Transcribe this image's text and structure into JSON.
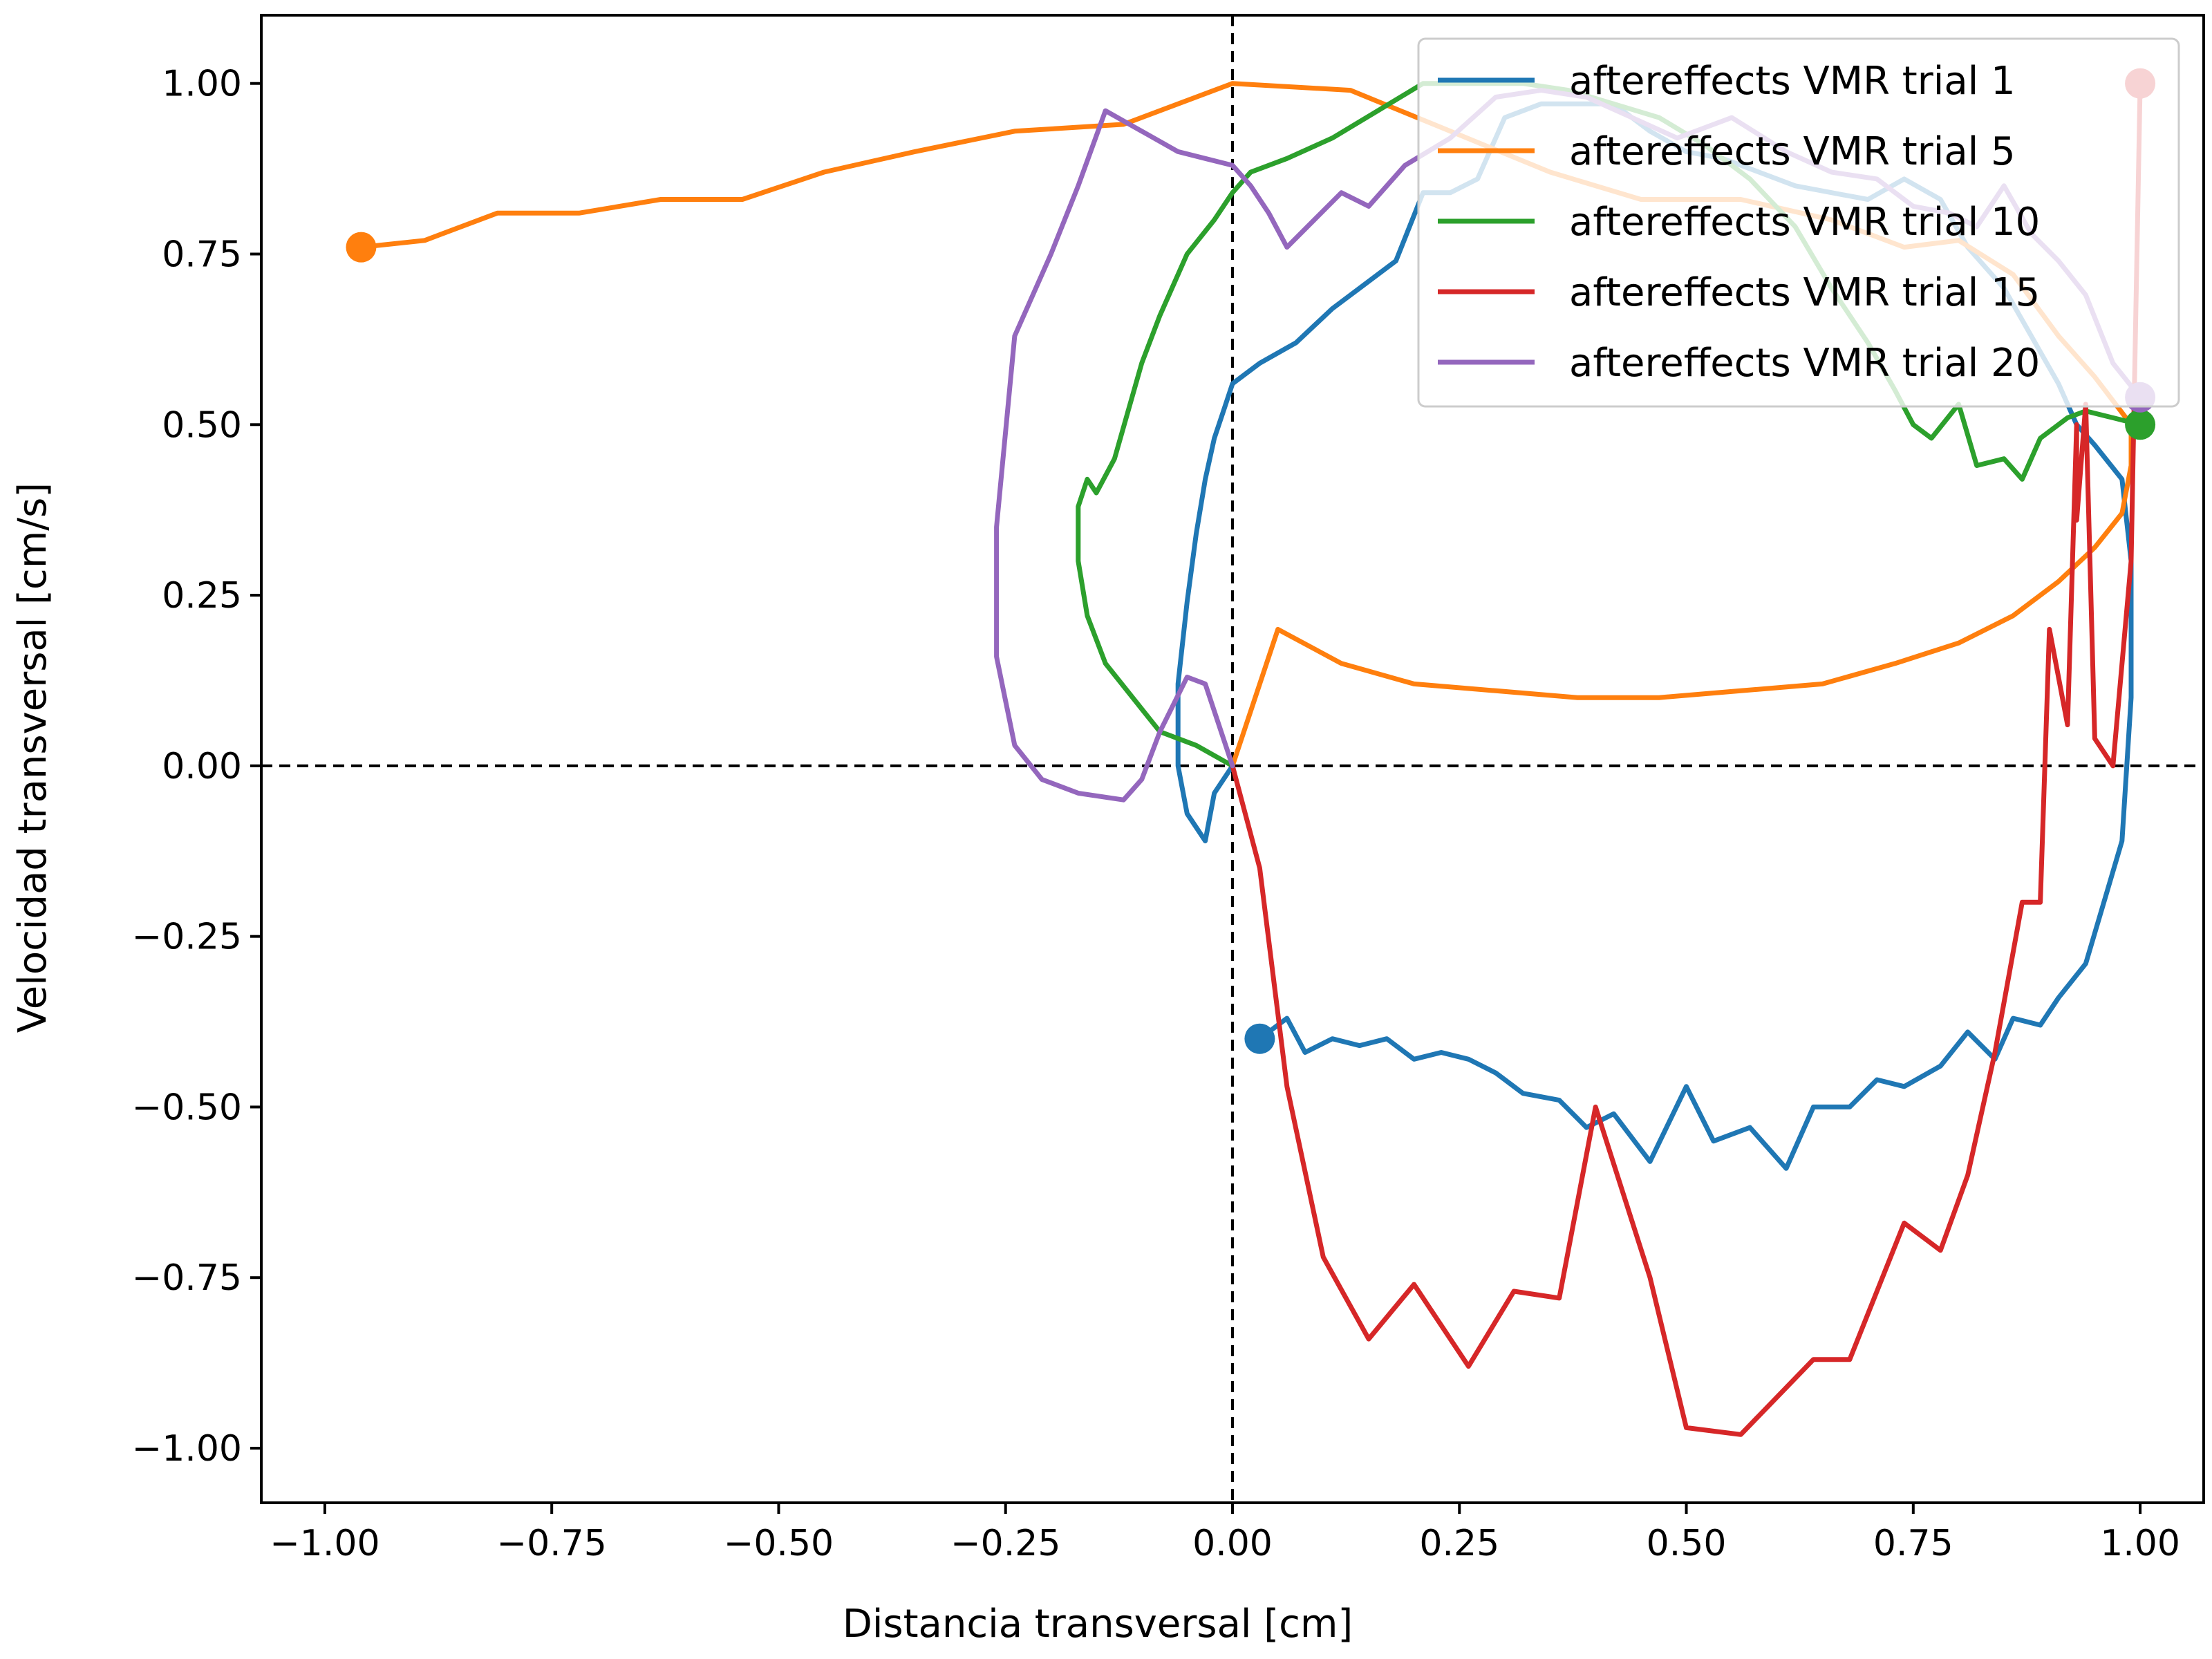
{
  "chart_data": {
    "type": "line",
    "title": "",
    "xlabel": "Distancia transversal [cm]",
    "ylabel": "Velocidad transversal [cm/s]",
    "xlim": [
      -1.07,
      1.07
    ],
    "ylim": [
      -1.08,
      1.1
    ],
    "xticks": [
      -1.0,
      -0.75,
      -0.5,
      -0.25,
      0.0,
      0.25,
      0.5,
      0.75,
      1.0
    ],
    "xtick_labels": [
      "−1.00",
      "−0.75",
      "−0.50",
      "−0.25",
      "0.00",
      "0.25",
      "0.50",
      "0.75",
      "1.00"
    ],
    "yticks": [
      1.0,
      0.75,
      0.5,
      0.25,
      0.0,
      -0.25,
      -0.5,
      -0.75,
      -1.0
    ],
    "ytick_labels": [
      "1.00",
      "0.75",
      "0.50",
      "0.25",
      "0.00",
      "−0.25",
      "−0.50",
      "−0.75",
      "−1.00"
    ],
    "reference_lines": {
      "x": 0,
      "y": 0,
      "style": "dashed"
    },
    "grid": false,
    "legend_position": "top-right",
    "series": [
      {
        "name": "aftereffects VMR trial 1",
        "color": "#1f77b4",
        "start_marker": [
          0.03,
          -0.4
        ],
        "points": [
          [
            0.03,
            -0.4
          ],
          [
            0.06,
            -0.37
          ],
          [
            0.08,
            -0.42
          ],
          [
            0.11,
            -0.4
          ],
          [
            0.14,
            -0.41
          ],
          [
            0.17,
            -0.4
          ],
          [
            0.2,
            -0.43
          ],
          [
            0.23,
            -0.42
          ],
          [
            0.26,
            -0.43
          ],
          [
            0.29,
            -0.45
          ],
          [
            0.32,
            -0.48
          ],
          [
            0.36,
            -0.49
          ],
          [
            0.39,
            -0.53
          ],
          [
            0.42,
            -0.51
          ],
          [
            0.46,
            -0.58
          ],
          [
            0.5,
            -0.47
          ],
          [
            0.53,
            -0.55
          ],
          [
            0.57,
            -0.53
          ],
          [
            0.61,
            -0.59
          ],
          [
            0.64,
            -0.5
          ],
          [
            0.68,
            -0.5
          ],
          [
            0.71,
            -0.46
          ],
          [
            0.74,
            -0.47
          ],
          [
            0.78,
            -0.44
          ],
          [
            0.81,
            -0.39
          ],
          [
            0.84,
            -0.43
          ],
          [
            0.86,
            -0.37
          ],
          [
            0.89,
            -0.38
          ],
          [
            0.91,
            -0.34
          ],
          [
            0.94,
            -0.29
          ],
          [
            0.96,
            -0.2
          ],
          [
            0.98,
            -0.11
          ],
          [
            0.99,
            0.1
          ],
          [
            0.99,
            0.3
          ],
          [
            0.98,
            0.42
          ],
          [
            0.95,
            0.47
          ],
          [
            0.93,
            0.5
          ],
          [
            0.91,
            0.56
          ],
          [
            0.88,
            0.63
          ],
          [
            0.85,
            0.7
          ],
          [
            0.81,
            0.76
          ],
          [
            0.78,
            0.83
          ],
          [
            0.74,
            0.86
          ],
          [
            0.7,
            0.83
          ],
          [
            0.66,
            0.84
          ],
          [
            0.62,
            0.85
          ],
          [
            0.58,
            0.87
          ],
          [
            0.54,
            0.89
          ],
          [
            0.5,
            0.9
          ],
          [
            0.46,
            0.93
          ],
          [
            0.42,
            0.97
          ],
          [
            0.38,
            0.97
          ],
          [
            0.34,
            0.97
          ],
          [
            0.3,
            0.95
          ],
          [
            0.27,
            0.86
          ],
          [
            0.24,
            0.84
          ],
          [
            0.21,
            0.84
          ],
          [
            0.18,
            0.74
          ],
          [
            0.14,
            0.7
          ],
          [
            0.11,
            0.67
          ],
          [
            0.07,
            0.62
          ],
          [
            0.03,
            0.59
          ],
          [
            0.0,
            0.56
          ],
          [
            -0.01,
            0.52
          ],
          [
            -0.02,
            0.48
          ],
          [
            -0.03,
            0.42
          ],
          [
            -0.04,
            0.34
          ],
          [
            -0.05,
            0.24
          ],
          [
            -0.06,
            0.12
          ],
          [
            -0.06,
            0.0
          ],
          [
            -0.05,
            -0.07
          ],
          [
            -0.03,
            -0.11
          ],
          [
            -0.02,
            -0.04
          ],
          [
            -0.01,
            -0.02
          ],
          [
            0.0,
            0.0
          ]
        ]
      },
      {
        "name": "aftereffects VMR trial 5",
        "color": "#ff7f0e",
        "start_marker": [
          -0.96,
          0.76
        ],
        "points": [
          [
            -0.96,
            0.76
          ],
          [
            -0.89,
            0.77
          ],
          [
            -0.81,
            0.81
          ],
          [
            -0.72,
            0.81
          ],
          [
            -0.63,
            0.83
          ],
          [
            -0.54,
            0.83
          ],
          [
            -0.45,
            0.87
          ],
          [
            -0.35,
            0.9
          ],
          [
            -0.24,
            0.93
          ],
          [
            -0.12,
            0.94
          ],
          [
            0.0,
            1.0
          ],
          [
            0.13,
            0.99
          ],
          [
            0.24,
            0.93
          ],
          [
            0.35,
            0.87
          ],
          [
            0.45,
            0.83
          ],
          [
            0.56,
            0.83
          ],
          [
            0.66,
            0.8
          ],
          [
            0.74,
            0.76
          ],
          [
            0.8,
            0.77
          ],
          [
            0.86,
            0.72
          ],
          [
            0.91,
            0.63
          ],
          [
            0.95,
            0.57
          ],
          [
            0.99,
            0.5
          ],
          [
            0.99,
            0.44
          ],
          [
            0.98,
            0.37
          ],
          [
            0.95,
            0.32
          ],
          [
            0.91,
            0.27
          ],
          [
            0.86,
            0.22
          ],
          [
            0.8,
            0.18
          ],
          [
            0.73,
            0.15
          ],
          [
            0.65,
            0.12
          ],
          [
            0.56,
            0.11
          ],
          [
            0.47,
            0.1
          ],
          [
            0.38,
            0.1
          ],
          [
            0.29,
            0.11
          ],
          [
            0.2,
            0.12
          ],
          [
            0.12,
            0.15
          ],
          [
            0.05,
            0.2
          ],
          [
            0.0,
            0.0
          ]
        ]
      },
      {
        "name": "aftereffects VMR trial 10",
        "color": "#2ca02c",
        "start_marker": [
          1.0,
          0.5
        ],
        "points": [
          [
            1.0,
            0.5
          ],
          [
            0.97,
            0.51
          ],
          [
            0.94,
            0.52
          ],
          [
            0.92,
            0.51
          ],
          [
            0.89,
            0.48
          ],
          [
            0.87,
            0.42
          ],
          [
            0.85,
            0.45
          ],
          [
            0.82,
            0.44
          ],
          [
            0.8,
            0.53
          ],
          [
            0.77,
            0.48
          ],
          [
            0.75,
            0.5
          ],
          [
            0.73,
            0.55
          ],
          [
            0.7,
            0.62
          ],
          [
            0.66,
            0.7
          ],
          [
            0.62,
            0.79
          ],
          [
            0.57,
            0.86
          ],
          [
            0.52,
            0.91
          ],
          [
            0.47,
            0.95
          ],
          [
            0.42,
            0.97
          ],
          [
            0.37,
            0.99
          ],
          [
            0.32,
            1.0
          ],
          [
            0.26,
            1.0
          ],
          [
            0.21,
            1.0
          ],
          [
            0.16,
            0.96
          ],
          [
            0.11,
            0.92
          ],
          [
            0.06,
            0.89
          ],
          [
            0.02,
            0.87
          ],
          [
            0.0,
            0.84
          ],
          [
            -0.02,
            0.8
          ],
          [
            -0.05,
            0.75
          ],
          [
            -0.08,
            0.66
          ],
          [
            -0.1,
            0.59
          ],
          [
            -0.13,
            0.45
          ],
          [
            -0.15,
            0.4
          ],
          [
            -0.16,
            0.42
          ],
          [
            -0.17,
            0.38
          ],
          [
            -0.17,
            0.38
          ],
          [
            -0.17,
            0.3
          ],
          [
            -0.16,
            0.22
          ],
          [
            -0.14,
            0.15
          ],
          [
            -0.11,
            0.1
          ],
          [
            -0.08,
            0.05
          ],
          [
            -0.04,
            0.03
          ],
          [
            0.0,
            0.0
          ]
        ]
      },
      {
        "name": "aftereffects VMR trial 15",
        "color": "#d62728",
        "start_marker": [
          1.0,
          1.0
        ],
        "points": [
          [
            1.0,
            1.0
          ],
          [
            0.99,
            0.3
          ],
          [
            0.97,
            0.0
          ],
          [
            0.95,
            0.04
          ],
          [
            0.94,
            0.53
          ],
          [
            0.93,
            0.36
          ],
          [
            0.93,
            0.5
          ],
          [
            0.92,
            0.06
          ],
          [
            0.9,
            0.2
          ],
          [
            0.89,
            -0.2
          ],
          [
            0.87,
            -0.2
          ],
          [
            0.84,
            -0.42
          ],
          [
            0.81,
            -0.6
          ],
          [
            0.78,
            -0.71
          ],
          [
            0.74,
            -0.67
          ],
          [
            0.68,
            -0.87
          ],
          [
            0.64,
            -0.87
          ],
          [
            0.56,
            -0.98
          ],
          [
            0.5,
            -0.97
          ],
          [
            0.46,
            -0.75
          ],
          [
            0.4,
            -0.5
          ],
          [
            0.36,
            -0.78
          ],
          [
            0.31,
            -0.77
          ],
          [
            0.26,
            -0.88
          ],
          [
            0.2,
            -0.76
          ],
          [
            0.15,
            -0.84
          ],
          [
            0.1,
            -0.72
          ],
          [
            0.06,
            -0.47
          ],
          [
            0.03,
            -0.15
          ],
          [
            0.0,
            0.0
          ]
        ]
      },
      {
        "name": "aftereffects VMR trial 20",
        "color": "#9467bd",
        "start_marker": [
          1.0,
          0.54
        ],
        "points": [
          [
            1.0,
            0.54
          ],
          [
            0.97,
            0.59
          ],
          [
            0.94,
            0.69
          ],
          [
            0.91,
            0.74
          ],
          [
            0.88,
            0.78
          ],
          [
            0.85,
            0.85
          ],
          [
            0.82,
            0.79
          ],
          [
            0.79,
            0.81
          ],
          [
            0.75,
            0.82
          ],
          [
            0.71,
            0.86
          ],
          [
            0.66,
            0.87
          ],
          [
            0.61,
            0.9
          ],
          [
            0.55,
            0.95
          ],
          [
            0.49,
            0.92
          ],
          [
            0.44,
            0.95
          ],
          [
            0.39,
            0.98
          ],
          [
            0.34,
            0.99
          ],
          [
            0.29,
            0.98
          ],
          [
            0.24,
            0.92
          ],
          [
            0.19,
            0.88
          ],
          [
            0.15,
            0.82
          ],
          [
            0.12,
            0.84
          ],
          [
            0.09,
            0.8
          ],
          [
            0.06,
            0.76
          ],
          [
            0.04,
            0.81
          ],
          [
            0.02,
            0.85
          ],
          [
            0.0,
            0.88
          ],
          [
            -0.03,
            0.89
          ],
          [
            -0.06,
            0.9
          ],
          [
            -0.1,
            0.93
          ],
          [
            -0.14,
            0.96
          ],
          [
            -0.17,
            0.85
          ],
          [
            -0.2,
            0.75
          ],
          [
            -0.24,
            0.63
          ],
          [
            -0.26,
            0.35
          ],
          [
            -0.26,
            0.16
          ],
          [
            -0.24,
            0.03
          ],
          [
            -0.21,
            -0.02
          ],
          [
            -0.17,
            -0.04
          ],
          [
            -0.12,
            -0.05
          ],
          [
            -0.1,
            -0.02
          ],
          [
            -0.08,
            0.05
          ],
          [
            -0.05,
            0.13
          ],
          [
            -0.03,
            0.12
          ],
          [
            0.0,
            0.0
          ]
        ]
      }
    ]
  }
}
